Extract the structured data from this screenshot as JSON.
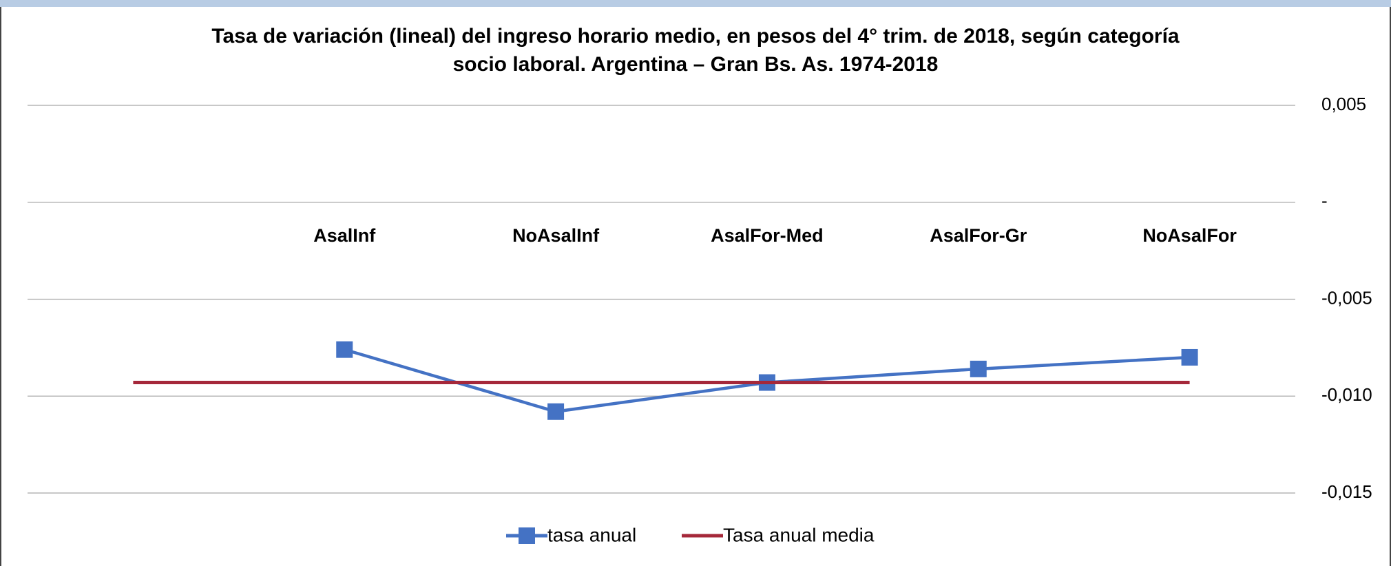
{
  "chart_data": {
    "type": "line",
    "title": "Tasa de variación (lineal) del ingreso horario medio, en pesos del 4° trim. de 2018, según categoría",
    "subtitle": "socio laboral. Argentina – Gran Bs. As. 1974-2018",
    "categories": [
      null,
      "AsalInf",
      "NoAsalInf",
      "AsalFor-Med",
      "AsalFor-Gr",
      "NoAsalFor"
    ],
    "series": [
      {
        "name": "tasa anual",
        "color": "#4472c4",
        "values": [
          null,
          -0.0076,
          -0.0108,
          -0.0093,
          -0.0086,
          -0.008
        ]
      },
      {
        "name": "Tasa anual media",
        "color": "#a5283a",
        "values": [
          -0.0093,
          -0.0093,
          -0.0093,
          -0.0093,
          -0.0093,
          -0.0093
        ]
      }
    ],
    "ylim": [
      -0.015,
      0.005
    ],
    "yticks": [
      {
        "value": 0.005,
        "label": "0,005"
      },
      {
        "value": 0,
        "label": "-"
      },
      {
        "value": -0.005,
        "label": "-0,005"
      },
      {
        "value": -0.01,
        "label": "-0,010"
      },
      {
        "value": -0.015,
        "label": "-0,015"
      }
    ],
    "grid": true,
    "legend": "bottom"
  }
}
